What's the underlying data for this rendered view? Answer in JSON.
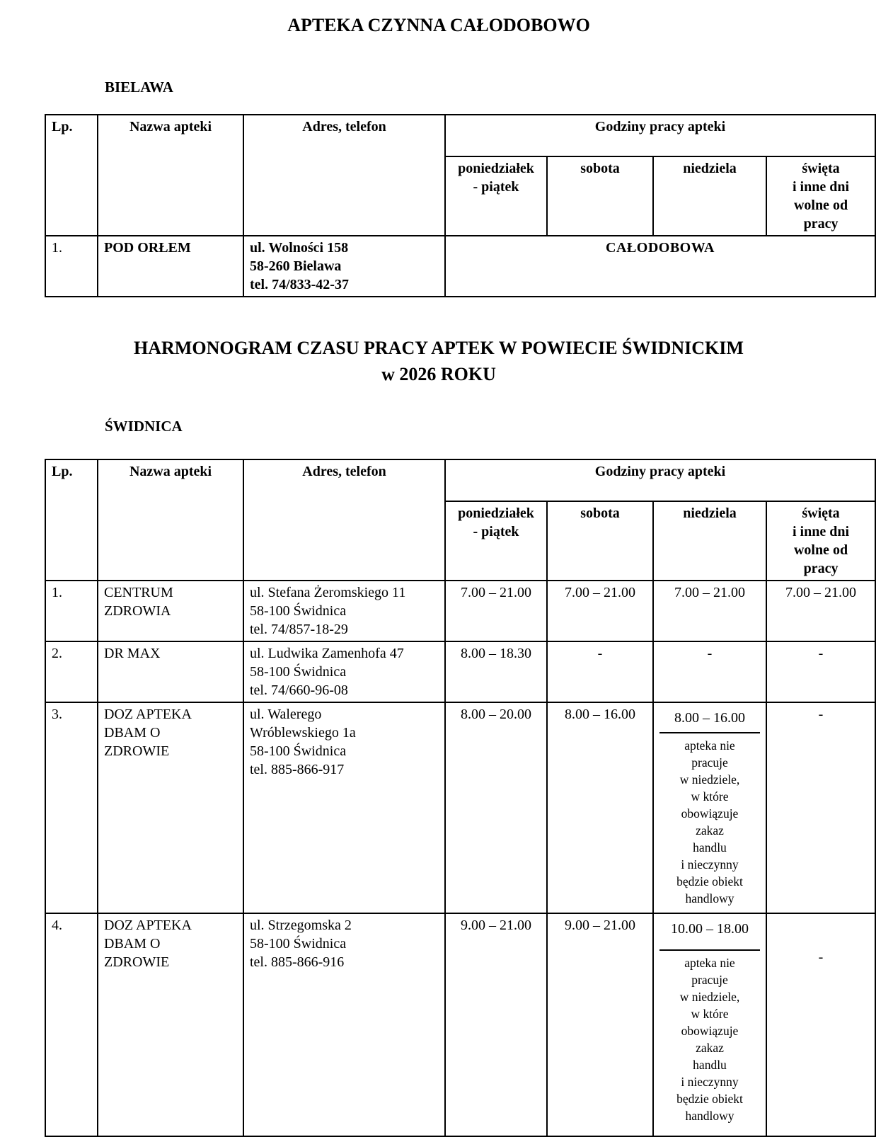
{
  "page": {
    "title1": "APTEKA CZYNNA CAŁODOBOWO",
    "section1": "BIELAWA",
    "title2_line1": "HARMONOGRAM CZASU PRACY APTEK W POWIECIE ŚWIDNICKIM",
    "title2_line2": "w 2026 ROKU",
    "section2": "ŚWIDNICA"
  },
  "table_headers": {
    "lp": "Lp.",
    "name": "Nazwa apteki",
    "address": "Adres, telefon",
    "hours": "Godziny pracy apteki",
    "days": [
      "poniedziałek\n- piątek",
      "sobota",
      "niedziela",
      "święta\ni inne dni\nwolne od\npracy"
    ]
  },
  "bielawa_table": {
    "rows": [
      {
        "lp": "1.",
        "name": "POD ORŁEM",
        "address": "ul. Wolności 158\n58-260 Bielawa\ntel. 74/833-42-37",
        "hours_all": "CAŁODOBOWA"
      }
    ]
  },
  "swidnica_table": {
    "rows": [
      {
        "lp": "1.",
        "name": "CENTRUM\nZDROWIA",
        "address": "ul. Stefana Żeromskiego 11\n58-100 Świdnica\ntel. 74/857-18-29",
        "mon_fri": "7.00 – 21.00",
        "saturday": "7.00 – 21.00",
        "sunday": "7.00 – 21.00",
        "holidays": "7.00 – 21.00"
      },
      {
        "lp": "2.",
        "name": "DR  MAX",
        "address": "ul. Ludwika Zamenhofa 47\n58-100 Świdnica\ntel. 74/660-96-08",
        "mon_fri": "8.00 – 18.30",
        "saturday": "-",
        "sunday": "-",
        "holidays": "-"
      },
      {
        "lp": "3.",
        "name": "DOZ APTEKA\nDBAM O\nZDROWIE",
        "address": "ul. Walerego\nWróblewskiego 1a\n58-100 Świdnica\ntel. 885-866-917",
        "mon_fri": "8.00 – 20.00",
        "saturday": "8.00 – 16.00",
        "sunday": "8.00 – 16.00",
        "sunday_note": "apteka nie\npracuje\nw niedziele,\nw które\nobowiązuje\nzakaz\nhandlu\ni nieczynny\nbędzie obiekt\nhandlowy",
        "holidays": "-"
      },
      {
        "lp": "4.",
        "name": "DOZ APTEKA\nDBAM O\nZDROWIE",
        "address": "ul. Strzegomska 2\n58-100 Świdnica\ntel. 885-866-916",
        "mon_fri": "9.00 – 21.00",
        "saturday": "9.00 – 21.00",
        "sunday": "10.00 – 18.00",
        "sunday_note": "apteka nie\npracuje\nw niedziele,\nw które\nobowiązuje\nzakaz\nhandlu\ni nieczynny\nbędzie obiekt\nhandlowy",
        "holidays": "-"
      }
    ]
  }
}
